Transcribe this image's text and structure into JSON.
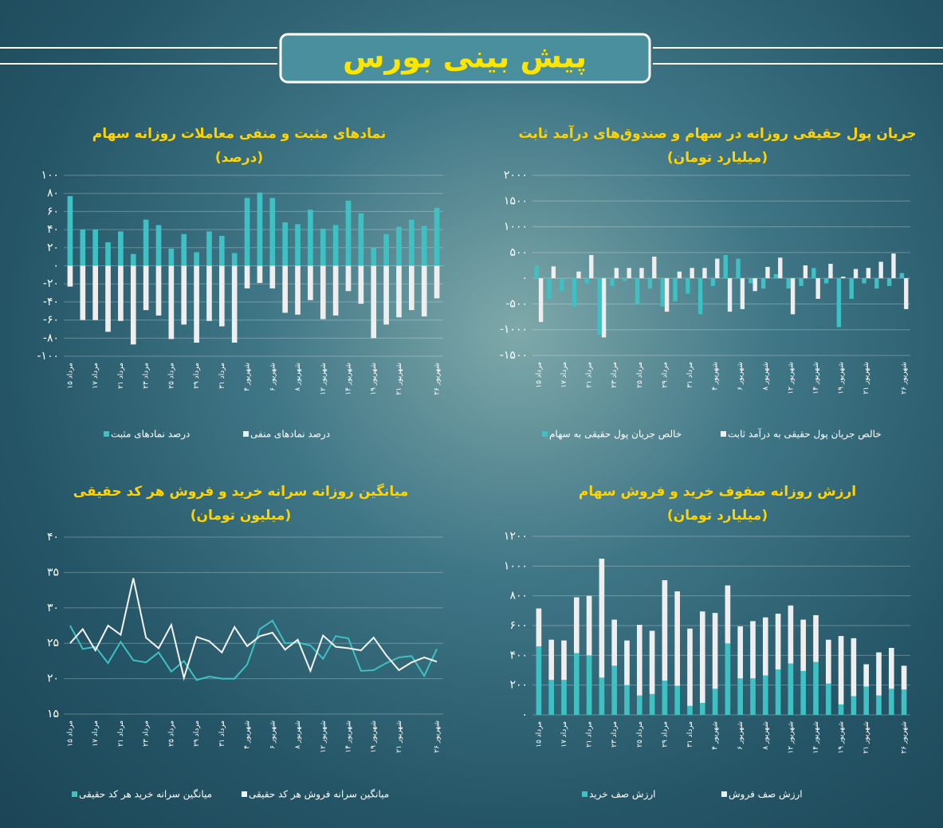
{
  "title": "پیش بینی بورس",
  "chart_data": [
    {
      "type": "bar",
      "stacked": true,
      "grid": true,
      "title": "نمادهای مثبت و منفی معاملات روزانه سهام",
      "subtitle": "(درصد)",
      "categories": [
        "۱۵ مرداد",
        null,
        "۱۷ مرداد",
        null,
        "۲۱ مرداد",
        null,
        "۲۳ مرداد",
        null,
        "۲۵ مرداد",
        null,
        "۲۹ مرداد",
        null,
        "۳۱ مرداد",
        null,
        "۴ شهریور",
        null,
        "۶ شهریور",
        null,
        "۸ شهریور",
        null,
        "۱۲ شهریور",
        null,
        "۱۴ شهریور",
        null,
        "۱۹ شهریور",
        null,
        "۲۱ شهریور",
        null,
        null,
        "۲۶ شهریور"
      ],
      "series": [
        {
          "name": "درصد نمادهای مثبت",
          "color": "#3fc1c3",
          "values": [
            77,
            40,
            40,
            26,
            38,
            13,
            51,
            45,
            19,
            35,
            15,
            38,
            33,
            14,
            75,
            81,
            75,
            48,
            46,
            62,
            41,
            45,
            72,
            58,
            20,
            35,
            43,
            51,
            44,
            64
          ]
        },
        {
          "name": "درصد نمادهای منفی",
          "color": "#eeeeee",
          "values": [
            -23,
            -60,
            -60,
            -73,
            -61,
            -87,
            -49,
            -55,
            -81,
            -65,
            -85,
            -61,
            -67,
            -85,
            -25,
            -19,
            -25,
            -52,
            -54,
            -38,
            -59,
            -55,
            -28,
            -42,
            -80,
            -65,
            -57,
            -49,
            -56,
            -36
          ]
        }
      ],
      "ylim": [
        -100,
        100
      ],
      "yticks": [
        {
          "value": -100,
          "label": "-۱۰۰"
        },
        {
          "value": -80,
          "label": "-۸۰"
        },
        {
          "value": -60,
          "label": "-۶۰"
        },
        {
          "value": -40,
          "label": "-۴۰"
        },
        {
          "value": -20,
          "label": "-۲۰"
        },
        {
          "value": 0,
          "label": "۰"
        },
        {
          "value": 20,
          "label": "۲۰"
        },
        {
          "value": 40,
          "label": "۴۰"
        },
        {
          "value": 60,
          "label": "۶۰"
        },
        {
          "value": 80,
          "label": "۸۰"
        },
        {
          "value": 100,
          "label": "۱۰۰"
        }
      ]
    },
    {
      "type": "bar",
      "stacked": false,
      "grid": true,
      "title": "جریان پول حقیقی روزانه در سهام و صندوق‌های درآمد ثابت",
      "subtitle": "(میلیارد تومان)",
      "categories": [
        "۱۵ مرداد",
        null,
        "۱۷ مرداد",
        null,
        "۲۱ مرداد",
        null,
        "۲۳ مرداد",
        null,
        "۲۵ مرداد",
        null,
        "۲۹ مرداد",
        null,
        "۳۱ مرداد",
        null,
        "۴ شهریور",
        null,
        "۶ شهریور",
        null,
        "۸ شهریور",
        null,
        "۱۲ شهریور",
        null,
        "۱۴ شهریور",
        null,
        "۱۹ شهریور",
        null,
        "۲۱ شهریور",
        null,
        null,
        "۲۶ شهریور"
      ],
      "series": [
        {
          "name": "خالص جریان پول حقیقی به سهام",
          "color": "#3fc1c3",
          "values": [
            250,
            -400,
            -250,
            -550,
            -100,
            -1100,
            -150,
            -50,
            -500,
            -200,
            -550,
            -450,
            -300,
            -700,
            -150,
            450,
            380,
            -100,
            -200,
            80,
            -200,
            -150,
            200,
            -100,
            -950,
            -400,
            -100,
            -200,
            -150,
            100
          ]
        },
        {
          "name": "خالص جریان پول حقیقی به درآمد ثابت",
          "color": "#eeeeee",
          "values": [
            -850,
            230,
            0,
            130,
            450,
            -1150,
            200,
            200,
            200,
            420,
            -650,
            130,
            200,
            200,
            380,
            -650,
            -600,
            -250,
            220,
            400,
            -700,
            250,
            -400,
            280,
            30,
            180,
            200,
            320,
            480,
            -600
          ]
        }
      ],
      "ylim": [
        -1500,
        2000
      ],
      "yticks": [
        {
          "value": -1500,
          "label": "-۱۵۰۰"
        },
        {
          "value": -1000,
          "label": "-۱۰۰۰"
        },
        {
          "value": -500,
          "label": "-۵۰۰"
        },
        {
          "value": 0,
          "label": "۰"
        },
        {
          "value": 500,
          "label": "۵۰۰"
        },
        {
          "value": 1000,
          "label": "۱۰۰۰"
        },
        {
          "value": 1500,
          "label": "۱۵۰۰"
        },
        {
          "value": 2000,
          "label": "۲۰۰۰"
        }
      ]
    },
    {
      "type": "line",
      "grid": true,
      "title": "میانگین روزانه سرانه خرید و فروش هر کد حقیقی",
      "subtitle": "(میلیون تومان)",
      "categories": [
        "۱۵ مرداد",
        null,
        "۱۷ مرداد",
        null,
        "۲۱ مرداد",
        null,
        "۲۳ مرداد",
        null,
        "۲۵ مرداد",
        null,
        "۲۹ مرداد",
        null,
        "۳۱ مرداد",
        null,
        "۴ شهریور",
        null,
        "۶ شهریور",
        null,
        "۸ شهریور",
        null,
        "۱۲ شهریور",
        null,
        "۱۴ شهریور",
        null,
        "۱۹ شهریور",
        null,
        "۲۱ شهریور",
        null,
        null,
        "۲۶ شهریور"
      ],
      "series": [
        {
          "name": "میانگین سرانه خرید هر کد حقیقی",
          "color": "#3fc1c3",
          "values": [
            27.5,
            24.2,
            24.5,
            22.2,
            25.2,
            22.6,
            22.3,
            23.7,
            21,
            22.5,
            19.8,
            20.3,
            20,
            20,
            22,
            27,
            28.2,
            25,
            25.1,
            24.7,
            22.8,
            26,
            25.7,
            21.1,
            21.2,
            22.2,
            23,
            23.2,
            20.4,
            24.2
          ]
        },
        {
          "name": "میانگین سرانه فروش هر کد حقیقی",
          "color": "#f4f4f4",
          "values": [
            25,
            27,
            24,
            27.5,
            26.2,
            34.2,
            25.8,
            24.3,
            27.6,
            20.1,
            25.9,
            25.3,
            23.7,
            27.3,
            24.6,
            26,
            26.5,
            24.1,
            25.5,
            21.1,
            26.1,
            24.5,
            24.3,
            24,
            25.8,
            23.3,
            21.2,
            22.3,
            23,
            22.4
          ]
        }
      ],
      "ylim": [
        15,
        40
      ],
      "yticks": [
        {
          "value": 15,
          "label": "۱۵"
        },
        {
          "value": 20,
          "label": "۲۰"
        },
        {
          "value": 25,
          "label": "۲۵"
        },
        {
          "value": 30,
          "label": "۳۰"
        },
        {
          "value": 35,
          "label": "۳۵"
        },
        {
          "value": 40,
          "label": "۴۰"
        }
      ]
    },
    {
      "type": "bar",
      "stacked": true,
      "grid": true,
      "title": "ارزش روزانه صفوف خرید و فروش سهام",
      "subtitle": "(میلیارد تومان)",
      "categories": [
        "۱۵ مرداد",
        null,
        "۱۷ مرداد",
        null,
        "۲۱ مرداد",
        null,
        "۲۳ مرداد",
        null,
        "۲۵ مرداد",
        null,
        "۲۹ مرداد",
        null,
        "۳۱ مرداد",
        null,
        "۴ شهریور",
        null,
        "۶ شهریور",
        null,
        "۸ شهریور",
        null,
        "۱۲ شهریور",
        null,
        "۱۴ شهریور",
        null,
        "۱۹ شهریور",
        null,
        "۲۱ شهریور",
        null,
        null,
        "۲۶ شهریور"
      ],
      "series": [
        {
          "name": "ارزش صف خرید",
          "color": "#3fc1c3",
          "values": [
            460,
            235,
            235,
            415,
            400,
            250,
            330,
            200,
            130,
            140,
            230,
            195,
            60,
            80,
            175,
            480,
            245,
            245,
            265,
            305,
            345,
            295,
            355,
            210,
            70,
            125,
            190,
            130,
            175,
            170
          ]
        },
        {
          "name": "ارزش صف فروش",
          "color": "#eeeeee",
          "values": [
            255,
            270,
            265,
            375,
            400,
            800,
            310,
            300,
            475,
            425,
            675,
            635,
            520,
            615,
            510,
            390,
            350,
            385,
            390,
            375,
            390,
            345,
            315,
            295,
            460,
            390,
            150,
            290,
            275,
            160
          ]
        }
      ],
      "ylim": [
        0,
        1200
      ],
      "yticks": [
        {
          "value": 0,
          "label": "۰"
        },
        {
          "value": 200,
          "label": "۲۰۰"
        },
        {
          "value": 400,
          "label": "۴۰۰"
        },
        {
          "value": 600,
          "label": "۶۰۰"
        },
        {
          "value": 800,
          "label": "۸۰۰"
        },
        {
          "value": 1000,
          "label": "۱۰۰۰"
        },
        {
          "value": 1200,
          "label": "۱۲۰۰"
        }
      ]
    }
  ]
}
